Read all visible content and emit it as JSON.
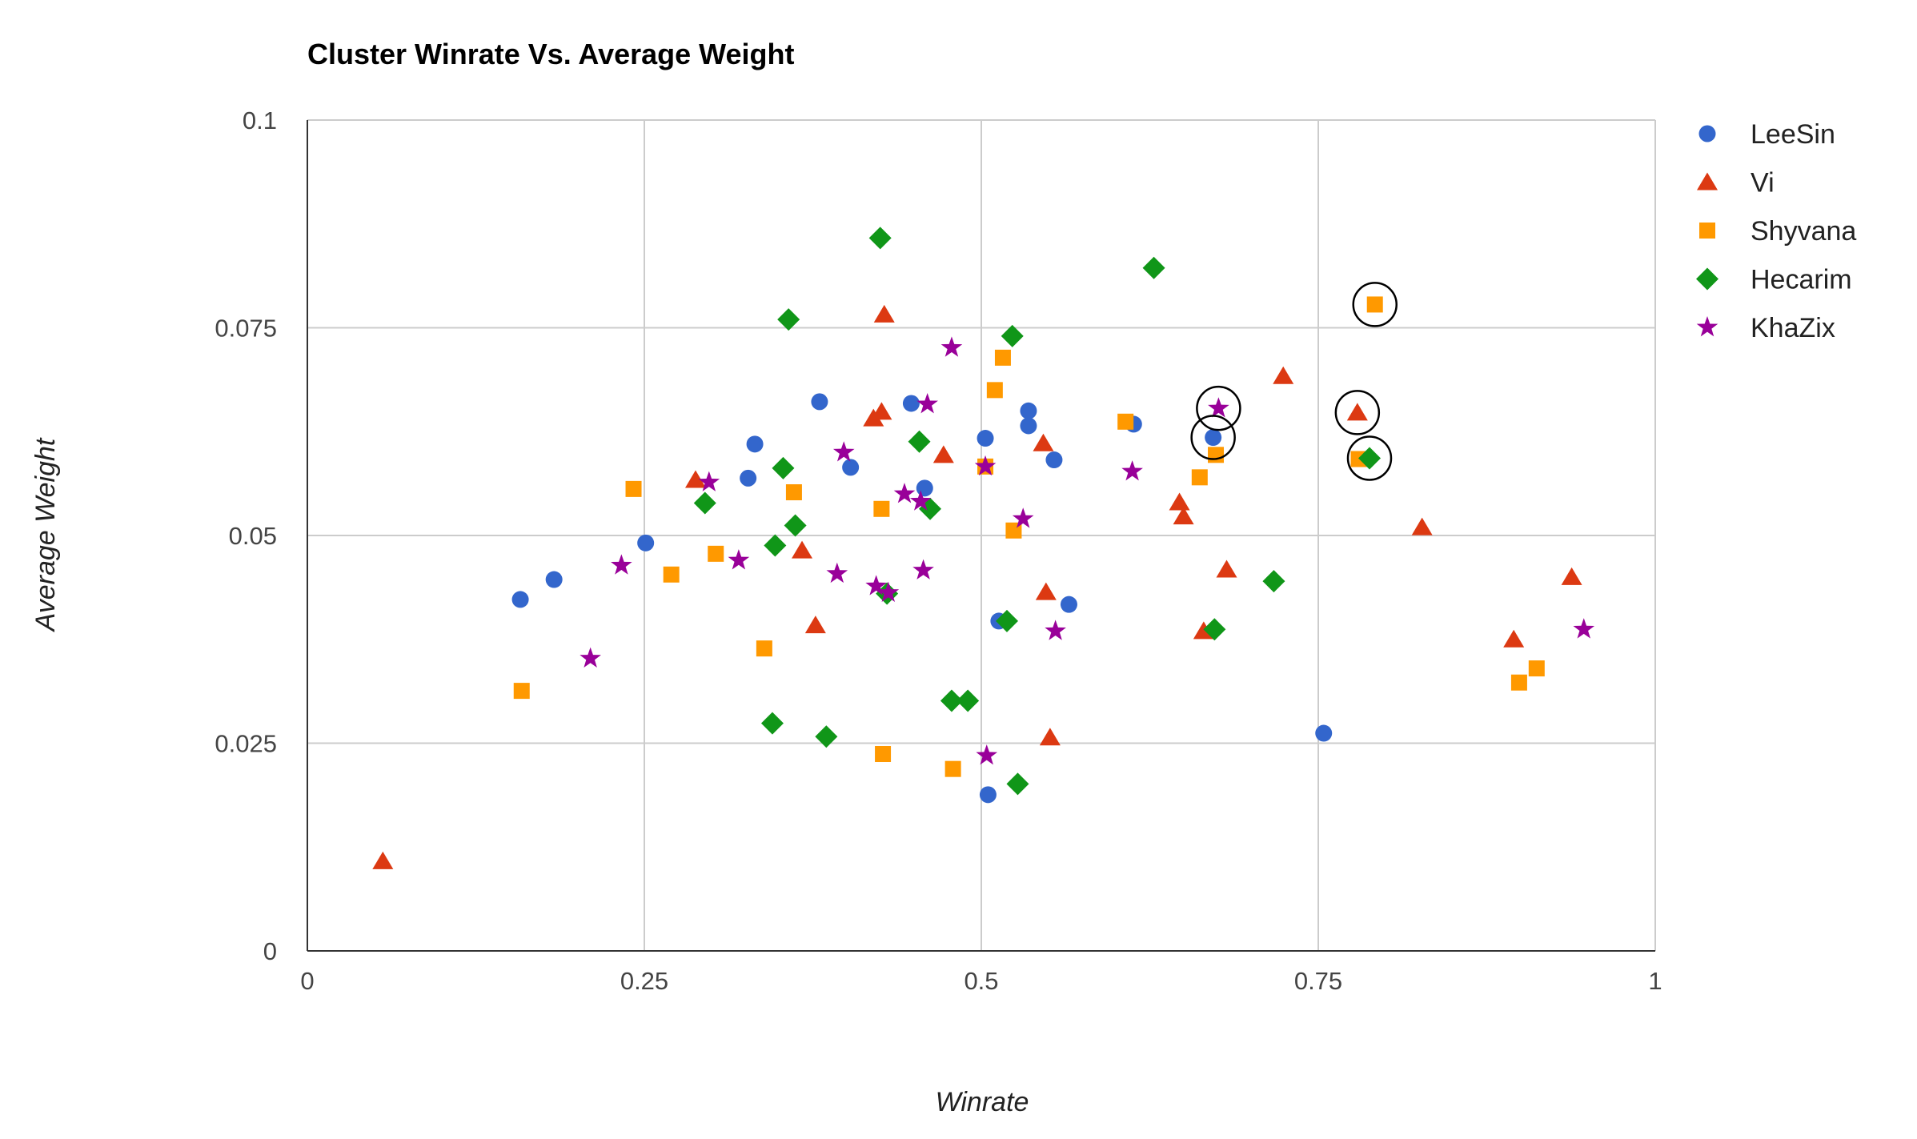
{
  "chart_data": {
    "type": "scatter",
    "title": "Cluster Winrate Vs. Average Weight",
    "xlabel": "Winrate",
    "ylabel": "Average Weight",
    "xlim": [
      0,
      1
    ],
    "ylim": [
      0,
      0.1
    ],
    "x_ticks": [
      "0",
      "0.25",
      "0.5",
      "0.75",
      "1"
    ],
    "y_ticks": [
      "0",
      "0.025",
      "0.05",
      "0.075",
      "0.1"
    ],
    "grid": true,
    "legend_position": "right",
    "series": [
      {
        "name": "LeeSin",
        "marker": "circle",
        "color": "#3366cc",
        "points": [
          [
            0.158,
            0.0423
          ],
          [
            0.183,
            0.0447
          ],
          [
            0.251,
            0.0491
          ],
          [
            0.327,
            0.0569
          ],
          [
            0.332,
            0.061
          ],
          [
            0.38,
            0.0661
          ],
          [
            0.403,
            0.0582
          ],
          [
            0.448,
            0.0659
          ],
          [
            0.458,
            0.0557
          ],
          [
            0.503,
            0.0617
          ],
          [
            0.513,
            0.0397
          ],
          [
            0.535,
            0.065
          ],
          [
            0.535,
            0.0632
          ],
          [
            0.554,
            0.0591
          ],
          [
            0.565,
            0.0417
          ],
          [
            0.613,
            0.0634
          ],
          [
            0.672,
            0.0618
          ],
          [
            0.754,
            0.0262
          ],
          [
            0.505,
            0.0188
          ]
        ]
      },
      {
        "name": "Vi",
        "marker": "triangle",
        "color": "#dc3912",
        "points": [
          [
            0.056,
            0.0108
          ],
          [
            0.288,
            0.0567
          ],
          [
            0.367,
            0.0482
          ],
          [
            0.377,
            0.0392
          ],
          [
            0.42,
            0.0641
          ],
          [
            0.426,
            0.0649
          ],
          [
            0.428,
            0.0766
          ],
          [
            0.472,
            0.0597
          ],
          [
            0.546,
            0.0611
          ],
          [
            0.548,
            0.0432
          ],
          [
            0.551,
            0.0257
          ],
          [
            0.647,
            0.054
          ],
          [
            0.65,
            0.0523
          ],
          [
            0.665,
            0.0385
          ],
          [
            0.682,
            0.0459
          ],
          [
            0.724,
            0.0692
          ],
          [
            0.779,
            0.0648
          ],
          [
            0.827,
            0.051
          ],
          [
            0.895,
            0.0375
          ],
          [
            0.938,
            0.045
          ]
        ]
      },
      {
        "name": "Shyvana",
        "marker": "square",
        "color": "#ff9900",
        "points": [
          [
            0.159,
            0.0313
          ],
          [
            0.242,
            0.0556
          ],
          [
            0.27,
            0.0453
          ],
          [
            0.303,
            0.0478
          ],
          [
            0.339,
            0.0364
          ],
          [
            0.361,
            0.0552
          ],
          [
            0.426,
            0.0532
          ],
          [
            0.427,
            0.0237
          ],
          [
            0.479,
            0.0219
          ],
          [
            0.503,
            0.0583
          ],
          [
            0.51,
            0.0675
          ],
          [
            0.516,
            0.0714
          ],
          [
            0.524,
            0.0506
          ],
          [
            0.607,
            0.0637
          ],
          [
            0.662,
            0.057
          ],
          [
            0.674,
            0.0597
          ],
          [
            0.78,
            0.0592
          ],
          [
            0.792,
            0.0778
          ],
          [
            0.899,
            0.0323
          ],
          [
            0.912,
            0.034
          ]
        ]
      },
      {
        "name": "Hecarim",
        "marker": "diamond",
        "color": "#109618",
        "points": [
          [
            0.295,
            0.0539
          ],
          [
            0.345,
            0.0274
          ],
          [
            0.347,
            0.0488
          ],
          [
            0.353,
            0.0581
          ],
          [
            0.357,
            0.076
          ],
          [
            0.362,
            0.0512
          ],
          [
            0.385,
            0.0258
          ],
          [
            0.425,
            0.0858
          ],
          [
            0.43,
            0.043
          ],
          [
            0.454,
            0.0613
          ],
          [
            0.462,
            0.0532
          ],
          [
            0.478,
            0.0301
          ],
          [
            0.49,
            0.0301
          ],
          [
            0.519,
            0.0397
          ],
          [
            0.523,
            0.074
          ],
          [
            0.527,
            0.0201
          ],
          [
            0.628,
            0.0822
          ],
          [
            0.673,
            0.0387
          ],
          [
            0.717,
            0.0445
          ],
          [
            0.788,
            0.0593
          ]
        ]
      },
      {
        "name": "KhaZix",
        "marker": "star",
        "color": "#990099",
        "points": [
          [
            0.21,
            0.0352
          ],
          [
            0.233,
            0.0464
          ],
          [
            0.298,
            0.0564
          ],
          [
            0.32,
            0.047
          ],
          [
            0.393,
            0.0454
          ],
          [
            0.398,
            0.06
          ],
          [
            0.422,
            0.0439
          ],
          [
            0.431,
            0.0431
          ],
          [
            0.443,
            0.055
          ],
          [
            0.455,
            0.0541
          ],
          [
            0.457,
            0.0458
          ],
          [
            0.46,
            0.0658
          ],
          [
            0.478,
            0.0726
          ],
          [
            0.503,
            0.0583
          ],
          [
            0.504,
            0.0235
          ],
          [
            0.531,
            0.052
          ],
          [
            0.555,
            0.0385
          ],
          [
            0.612,
            0.0577
          ],
          [
            0.676,
            0.0653
          ],
          [
            0.947,
            0.0387
          ]
        ]
      }
    ],
    "highlighted_points": [
      [
        0.792,
        0.0778
      ],
      [
        0.676,
        0.0653
      ],
      [
        0.779,
        0.0648
      ],
      [
        0.672,
        0.0618
      ],
      [
        0.788,
        0.0593
      ]
    ]
  }
}
